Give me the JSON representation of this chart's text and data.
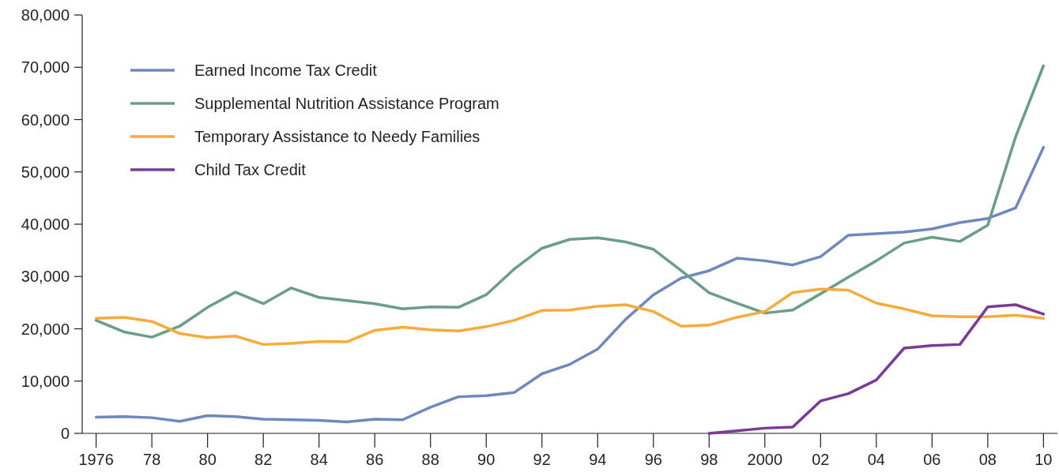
{
  "chart_data": {
    "type": "line",
    "legend": "top left",
    "line_style": "solid",
    "marker": "none",
    "grid": false,
    "xlim": [
      1975.5,
      2010.5
    ],
    "xticks": [
      1976,
      {
        "value": 1978,
        "label": "78"
      },
      {
        "value": 1980,
        "label": "80"
      },
      {
        "value": 1982,
        "label": "82"
      },
      {
        "value": 1984,
        "label": "84"
      },
      {
        "value": 1986,
        "label": "86"
      },
      {
        "value": 1988,
        "label": "88"
      },
      {
        "value": 1990,
        "label": "90"
      },
      {
        "value": 1992,
        "label": "92"
      },
      {
        "value": 1994,
        "label": "94"
      },
      {
        "value": 1996,
        "label": "96"
      },
      {
        "value": 1998,
        "label": "98"
      },
      2000,
      {
        "value": 2002,
        "label": "02"
      },
      {
        "value": 2004,
        "label": "04"
      },
      {
        "value": 2006,
        "label": "06"
      },
      {
        "value": 2008,
        "label": "08"
      },
      {
        "value": 2010,
        "label": "10"
      }
    ],
    "ylim": [
      0,
      80000
    ],
    "yticks": [
      {
        "value": 0,
        "label": "0"
      },
      {
        "value": 10000,
        "label": "10,000"
      },
      {
        "value": 20000,
        "label": "20,000"
      },
      {
        "value": 30000,
        "label": "30,000"
      },
      {
        "value": 40000,
        "label": "40,000"
      },
      {
        "value": 50000,
        "label": "50,000"
      },
      {
        "value": 60000,
        "label": "60,000"
      },
      {
        "value": 70000,
        "label": "70,000"
      },
      {
        "value": 80000,
        "label": "80,000"
      }
    ],
    "x": [
      1976,
      1977,
      1978,
      1979,
      1980,
      1981,
      1982,
      1983,
      1984,
      1985,
      1986,
      1987,
      1988,
      1989,
      1990,
      1991,
      1992,
      1993,
      1994,
      1995,
      1996,
      1997,
      1998,
      1999,
      2000,
      2001,
      2002,
      2003,
      2004,
      2005,
      2006,
      2007,
      2008,
      2009,
      2010
    ],
    "series": [
      {
        "name": "Earned Income Tax Credit",
        "color": "#6f88bf",
        "values": [
          3100,
          3200,
          3000,
          2300,
          3400,
          3200,
          2700,
          2600,
          2500,
          2200,
          2700,
          2600,
          5000,
          7000,
          7200,
          7800,
          11400,
          13200,
          16100,
          21800,
          26500,
          29700,
          31100,
          33500,
          33000,
          32200,
          33800,
          37900,
          38200,
          38500,
          39100,
          40300,
          41100,
          43100,
          54700
        ]
      },
      {
        "name": "Supplemental Nutrition Assistance Program",
        "color": "#6b9e87",
        "values": [
          21600,
          19400,
          18400,
          20500,
          24100,
          27000,
          24800,
          27800,
          26000,
          25400,
          24800,
          23800,
          24200,
          24100,
          26500,
          31400,
          35400,
          37100,
          37400,
          36600,
          35200,
          31100,
          26900,
          24900,
          23000,
          23600,
          26700,
          29900,
          33000,
          36400,
          37500,
          36700,
          39800,
          56700,
          70300
        ]
      },
      {
        "name": "Temporary Assistance to Needy Families",
        "color": "#f7ab3a",
        "values": [
          22000,
          22200,
          21400,
          19100,
          18300,
          18600,
          17000,
          17200,
          17600,
          17500,
          19700,
          20300,
          19800,
          19600,
          20400,
          21600,
          23500,
          23600,
          24300,
          24600,
          23300,
          20500,
          20700,
          22200,
          23300,
          26900,
          27600,
          27400,
          24900,
          23800,
          22500,
          22300,
          22300,
          22600,
          22000
        ]
      },
      {
        "name": "Child Tax Credit",
        "color": "#7b3a96",
        "x": [
          1998,
          1999,
          2000,
          2001,
          2002,
          2003,
          2004,
          2005,
          2006,
          2007,
          2008,
          2009,
          2010
        ],
        "values": [
          0,
          500,
          1000,
          1200,
          6200,
          7600,
          10200,
          16300,
          16800,
          17000,
          24200,
          24600,
          22800
        ]
      }
    ]
  }
}
